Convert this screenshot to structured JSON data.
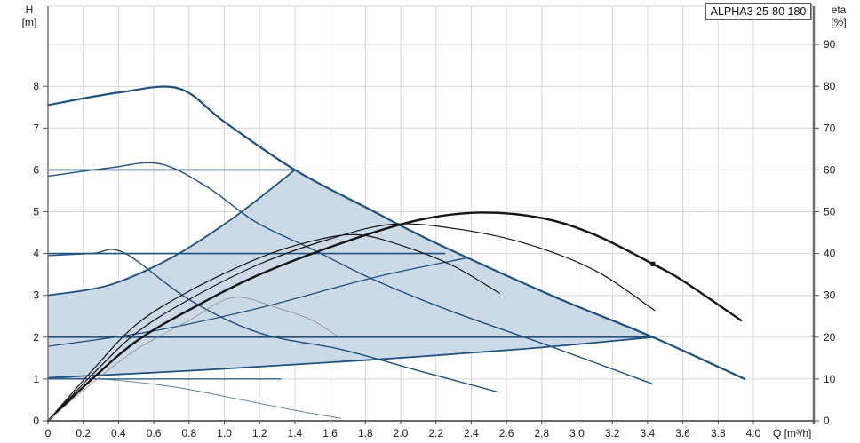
{
  "title_box": "ALPHA3 25-80 180",
  "left_axis_title": "H\n[m]",
  "right_axis_title": "eta\n[%]",
  "x_axis_unit": "Q [m³/h]",
  "chart_data": {
    "type": "line",
    "title": "ALPHA3 25-80 180",
    "xlabel": "Q [m³/h]",
    "ylabel_left": "H [m]",
    "ylabel_right": "eta [%]",
    "xlim": [
      0,
      4.34
    ],
    "ylim_left": [
      0,
      9.9
    ],
    "ylim_right": [
      0,
      99
    ],
    "grid": true,
    "x_ticks": [
      0,
      0.2,
      0.4,
      0.6,
      0.8,
      1.0,
      1.2,
      1.4,
      1.6,
      1.8,
      2.0,
      2.2,
      2.4,
      2.6,
      2.8,
      3.0,
      3.2,
      3.4,
      3.6,
      3.8,
      4.0
    ],
    "h_ticks": [
      0,
      1,
      2,
      3,
      4,
      5,
      6,
      7,
      8
    ],
    "eta_ticks": [
      0,
      10,
      20,
      30,
      40,
      50,
      60,
      70,
      80,
      90
    ],
    "colors": {
      "pump_blue": "#1f5080",
      "shade_fill": "#ccd9e7",
      "eta_black": "#141414",
      "faint_gray": "#8a8a8a",
      "grid": "#d6d6d6"
    },
    "shaded_region_H": [
      [
        0,
        1.03
      ],
      [
        0,
        3.0
      ],
      [
        0.35,
        3.25
      ],
      [
        0.7,
        3.9
      ],
      [
        1.05,
        4.85
      ],
      [
        1.4,
        6.0
      ],
      [
        1.85,
        5.0
      ],
      [
        2.2,
        4.25
      ],
      [
        2.87,
        2.97
      ],
      [
        3.43,
        2.0
      ],
      [
        2.7,
        1.72
      ],
      [
        1.8,
        1.45
      ],
      [
        0.9,
        1.22
      ],
      [
        0,
        1.03
      ]
    ],
    "series": [
      {
        "name": "max-speed-curve",
        "axis": "H",
        "width": 2.2,
        "color": "#1f5080",
        "points": [
          [
            0,
            7.55
          ],
          [
            0.4,
            7.85
          ],
          [
            0.74,
            7.95
          ],
          [
            1.0,
            7.15
          ],
          [
            1.4,
            6.0
          ],
          [
            1.85,
            5.0
          ],
          [
            2.2,
            4.25
          ],
          [
            2.87,
            2.97
          ],
          [
            3.43,
            2.0
          ],
          [
            3.95,
            1.0
          ]
        ]
      },
      {
        "name": "speed-curve-2",
        "axis": "H",
        "width": 1.4,
        "color": "#1f5080",
        "points": [
          [
            0,
            5.85
          ],
          [
            0.35,
            6.05
          ],
          [
            0.63,
            6.15
          ],
          [
            0.9,
            5.6
          ],
          [
            1.18,
            4.75
          ],
          [
            1.5,
            4.1
          ],
          [
            1.85,
            3.37
          ],
          [
            2.3,
            2.6
          ],
          [
            2.87,
            1.75
          ],
          [
            3.43,
            0.88
          ]
        ]
      },
      {
        "name": "speed-curve-1",
        "axis": "H",
        "width": 1.4,
        "color": "#1f5080",
        "points": [
          [
            0,
            3.95
          ],
          [
            0.25,
            4.0
          ],
          [
            0.43,
            4.02
          ],
          [
            0.8,
            2.9
          ],
          [
            1.2,
            2.1
          ],
          [
            1.67,
            1.7
          ],
          [
            2.1,
            1.2
          ],
          [
            2.55,
            0.69
          ]
        ]
      },
      {
        "name": "min-speed-curve",
        "axis": "H",
        "width": 0.9,
        "color": "#5a7a9a",
        "points": [
          [
            0,
            1.02
          ],
          [
            0.3,
            1.0
          ],
          [
            0.7,
            0.82
          ],
          [
            1.1,
            0.5
          ],
          [
            1.4,
            0.25
          ],
          [
            1.66,
            0.06
          ]
        ]
      },
      {
        "name": "const-pressure-6m",
        "axis": "H",
        "width": 1.6,
        "color": "#1f5080",
        "points": [
          [
            0,
            6.0
          ],
          [
            1.4,
            6.0
          ]
        ]
      },
      {
        "name": "const-pressure-4m",
        "axis": "H",
        "width": 1.6,
        "color": "#1f5080",
        "points": [
          [
            0,
            4.0
          ],
          [
            2.25,
            4.0
          ]
        ]
      },
      {
        "name": "const-pressure-2m",
        "axis": "H",
        "width": 1.6,
        "color": "#1f5080",
        "points": [
          [
            0,
            2.0
          ],
          [
            3.43,
            2.0
          ]
        ]
      },
      {
        "name": "const-pressure-1m",
        "axis": "H",
        "width": 1.3,
        "color": "#1f5080",
        "points": [
          [
            0,
            1.0
          ],
          [
            1.32,
            1.0
          ]
        ]
      },
      {
        "name": "prop-pressure-max",
        "axis": "H",
        "width": 1.8,
        "color": "#1f5080",
        "points": [
          [
            0,
            3.0
          ],
          [
            0.35,
            3.25
          ],
          [
            0.7,
            3.9
          ],
          [
            1.05,
            4.85
          ],
          [
            1.4,
            6.0
          ]
        ]
      },
      {
        "name": "prop-pressure-mid",
        "axis": "H",
        "width": 1.3,
        "color": "#1f5080",
        "points": [
          [
            0,
            1.78
          ],
          [
            0.6,
            2.15
          ],
          [
            1.2,
            2.7
          ],
          [
            1.85,
            3.43
          ],
          [
            2.38,
            3.9
          ]
        ]
      },
      {
        "name": "prop-pressure-min",
        "axis": "H",
        "width": 1.8,
        "color": "#1f5080",
        "points": [
          [
            0,
            1.03
          ],
          [
            0.9,
            1.22
          ],
          [
            1.8,
            1.45
          ],
          [
            2.7,
            1.72
          ],
          [
            3.43,
            2.0
          ]
        ]
      },
      {
        "name": "eta-curve-max",
        "axis": "eta",
        "width": 2.4,
        "color": "#141414",
        "points": [
          [
            0,
            0
          ],
          [
            0.25,
            10
          ],
          [
            0.5,
            19
          ],
          [
            0.8,
            26.5
          ],
          [
            1.2,
            35
          ],
          [
            1.7,
            43
          ],
          [
            2.1,
            48
          ],
          [
            2.45,
            49.8
          ],
          [
            2.8,
            48.5
          ],
          [
            3.1,
            44.5
          ],
          [
            3.43,
            37.5
          ],
          [
            3.6,
            33.5
          ],
          [
            3.93,
            24
          ]
        ]
      },
      {
        "name": "eta-curve-2",
        "axis": "eta",
        "width": 1.2,
        "color": "#141414",
        "points": [
          [
            0,
            0
          ],
          [
            0.25,
            11
          ],
          [
            0.5,
            21
          ],
          [
            0.8,
            29
          ],
          [
            1.2,
            37.5
          ],
          [
            1.6,
            43.5
          ],
          [
            1.95,
            47
          ],
          [
            2.3,
            46
          ],
          [
            2.7,
            42.5
          ],
          [
            3.1,
            36
          ],
          [
            3.44,
            26.4
          ]
        ]
      },
      {
        "name": "eta-curve-1",
        "axis": "eta",
        "width": 1.2,
        "color": "#141414",
        "points": [
          [
            0,
            0
          ],
          [
            0.25,
            12
          ],
          [
            0.5,
            23
          ],
          [
            0.8,
            31
          ],
          [
            1.2,
            39
          ],
          [
            1.5,
            43
          ],
          [
            1.75,
            44.5
          ],
          [
            2.0,
            42
          ],
          [
            2.3,
            37
          ],
          [
            2.56,
            30.5
          ]
        ]
      },
      {
        "name": "eta-curve-min",
        "axis": "eta",
        "width": 0.8,
        "color": "#8a8a8a",
        "points": [
          [
            0,
            0
          ],
          [
            0.25,
            9
          ],
          [
            0.5,
            17
          ],
          [
            0.8,
            24
          ],
          [
            1.05,
            29.5
          ],
          [
            1.3,
            27
          ],
          [
            1.5,
            24
          ],
          [
            1.65,
            20
          ]
        ]
      }
    ],
    "marker_point": {
      "name": "duty-point-marker",
      "axis": "eta",
      "q": 3.43,
      "value": 37.5,
      "color": "#141414"
    }
  }
}
